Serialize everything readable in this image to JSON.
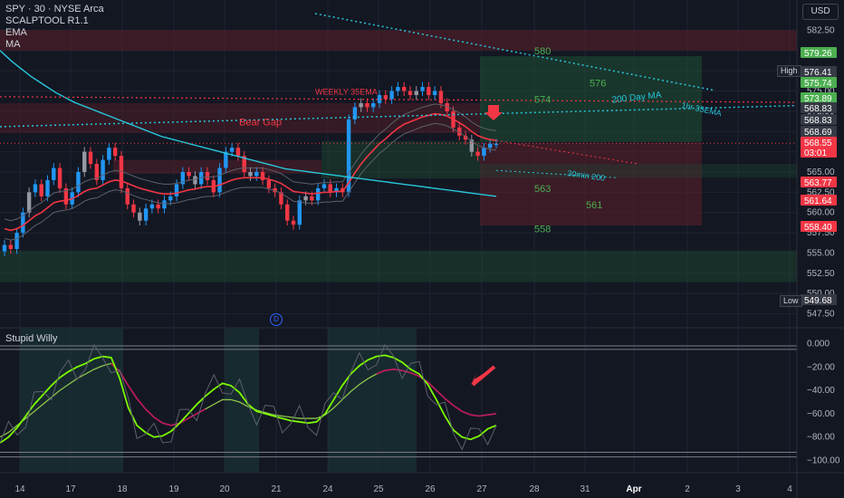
{
  "header": {
    "symbol_line": "SPY · 30 · NYSE Arca",
    "indicators": [
      "SCALPTOOL R1.1",
      "EMA",
      "MA"
    ],
    "usd": "USD"
  },
  "lower_indicator_title": "Stupid Willy",
  "side_labels": {
    "high": "High",
    "low": "Low"
  },
  "d_marker": "D",
  "colors": {
    "background": "#131722",
    "up_candle": "#2196f3",
    "down_candle": "#f23645",
    "neutral_candle": "#9598a1",
    "ema": "#f23645",
    "ma": "#26c6da",
    "zone_red": "#5c1f2a",
    "zone_green": "#1e4b33",
    "label_green": "#4caf50",
    "label_red": "#f23645",
    "label_blue": "#26c6da"
  },
  "chart_data": [
    {
      "type": "candlestick",
      "title": "SPY · 30 · NYSE Arca",
      "ylabel": "USD",
      "ylim": [
        546,
        584
      ],
      "x_ticks": [
        "14",
        "17",
        "18",
        "19",
        "20",
        "21",
        "24",
        "25",
        "26",
        "27",
        "28",
        "31",
        "Apr",
        "2",
        "3",
        "4"
      ],
      "y_ticks": [
        "582.50",
        "580.00",
        "577.50",
        "575.00",
        "572.50",
        "570.00",
        "567.50",
        "565.00",
        "562.50",
        "560.00",
        "557.50",
        "555.00",
        "552.50",
        "550.00",
        "547.50"
      ],
      "price_labels": [
        {
          "value": "579.26",
          "color": "green"
        },
        {
          "value": "576.41",
          "color": "dark"
        },
        {
          "value": "575.74",
          "color": "green"
        },
        {
          "value": "573.89",
          "color": "green"
        },
        {
          "value": "568.83",
          "color": "dark"
        },
        {
          "value": "568.83",
          "color": "dark"
        },
        {
          "value": "568.69",
          "color": "dark"
        },
        {
          "value": "568.55",
          "color": "red"
        },
        {
          "value": "03:01",
          "color": "red"
        },
        {
          "value": "563.77",
          "color": "red"
        },
        {
          "value": "561.64",
          "color": "red"
        },
        {
          "value": "558.40",
          "color": "red"
        },
        {
          "value": "549.68",
          "color": "dark"
        }
      ],
      "level_labels": [
        {
          "text": "580",
          "price": 580.0,
          "color": "green"
        },
        {
          "text": "576",
          "price": 576.0,
          "color": "green"
        },
        {
          "text": "574",
          "price": 574.0,
          "color": "green"
        },
        {
          "text": "563",
          "price": 563.0,
          "color": "green"
        },
        {
          "text": "561",
          "price": 561.0,
          "color": "green"
        },
        {
          "text": "558",
          "price": 558.0,
          "color": "green"
        }
      ],
      "annotations": [
        "WEEKLY 35EMA",
        "Bear Gap",
        "200 Day MA",
        "1hr 35EMA",
        "30min 200"
      ],
      "series": [
        {
          "name": "Close",
          "values": [
            556.0,
            555.5,
            557.5,
            560.0,
            562.5,
            563.5,
            562.0,
            564.0,
            565.5,
            563.0,
            561.0,
            562.5,
            565.0,
            567.5,
            566.0,
            564.0,
            566.5,
            568.0,
            567.0,
            563.0,
            561.0,
            560.0,
            559.0,
            560.5,
            561.0,
            560.5,
            561.5,
            562.0,
            563.5,
            565.0,
            564.5,
            563.5,
            565.0,
            564.0,
            562.5,
            565.5,
            567.5,
            568.0,
            567.0,
            565.0,
            564.5,
            565.0,
            564.0,
            563.0,
            562.5,
            561.0,
            559.0,
            558.5,
            561.5,
            562.0,
            561.5,
            563.0,
            563.5,
            562.5,
            563.0,
            562.5,
            571.5,
            573.0,
            573.5,
            573.0,
            573.5,
            574.5,
            574.0,
            575.0,
            575.5,
            575.0,
            574.5,
            575.0,
            575.5,
            574.5,
            575.0,
            573.5,
            572.5,
            570.5,
            569.5,
            569.0,
            567.5,
            567.0,
            568.0,
            568.5,
            568.5
          ]
        },
        {
          "name": "EMA",
          "values": [
            558.0,
            557.8,
            558.0,
            558.4,
            559.0,
            559.6,
            560.0,
            560.6,
            561.2,
            561.4,
            561.5,
            561.7,
            562.1,
            562.6,
            562.9,
            563.0,
            563.4,
            563.8,
            564.0,
            563.9,
            563.6,
            563.3,
            563.0,
            562.8,
            562.6,
            562.4,
            562.3,
            562.3,
            562.4,
            562.6,
            562.8,
            562.9,
            563.1,
            563.2,
            563.2,
            563.4,
            563.7,
            564.0,
            564.2,
            564.3,
            564.3,
            564.3,
            564.3,
            564.1,
            563.9,
            563.6,
            563.1,
            562.6,
            562.5,
            562.4,
            562.3,
            562.4,
            562.5,
            562.5,
            562.6,
            562.6,
            563.7,
            564.9,
            566.0,
            566.9,
            567.7,
            568.5,
            569.1,
            569.8,
            570.4,
            570.9,
            571.2,
            571.5,
            571.8,
            572.0,
            572.2,
            572.1,
            571.9,
            571.5,
            571.1,
            570.6,
            570.0,
            569.5,
            569.2,
            569.0,
            568.9
          ]
        },
        {
          "name": "MA",
          "values": [
            580.0,
            579.3,
            578.6,
            578.0,
            577.4,
            576.8,
            576.3,
            575.8,
            575.3,
            574.8,
            574.4,
            574.0,
            573.6,
            573.3,
            573.0,
            572.7,
            572.4,
            572.1,
            571.8,
            571.5,
            571.2,
            570.9,
            570.6,
            570.3,
            570.0,
            569.7,
            569.4,
            569.2,
            569.0,
            568.8,
            568.6,
            568.4,
            568.2,
            568.0,
            567.8,
            567.6,
            567.4,
            567.2,
            567.0,
            566.8,
            566.6,
            566.4,
            566.2,
            566.0,
            565.8,
            565.6,
            565.4,
            565.3,
            565.2,
            565.1,
            565.0,
            564.9,
            564.8,
            564.7,
            564.6,
            564.5,
            564.4,
            564.3,
            564.2,
            564.1,
            564.0,
            563.9,
            563.8,
            563.7,
            563.6,
            563.5,
            563.4,
            563.3,
            563.2,
            563.1,
            563.0,
            562.9,
            562.8,
            562.7,
            562.6,
            562.5,
            562.4,
            562.3,
            562.2,
            562.1,
            562.0
          ]
        }
      ]
    },
    {
      "type": "line",
      "title": "Stupid Willy",
      "ylim": [
        -105,
        5
      ],
      "y_ticks": [
        "0.000",
        "−20.00",
        "−40.00",
        "−60.00",
        "−80.00",
        "−100.00"
      ],
      "series": [
        {
          "name": "Fast",
          "values": [
            -85,
            -80,
            -72,
            -62,
            -52,
            -44,
            -36,
            -29,
            -24,
            -20,
            -17,
            -13,
            -11,
            -12,
            -30,
            -55,
            -70,
            -76,
            -80,
            -79,
            -75,
            -68,
            -60,
            -52,
            -45,
            -39,
            -34,
            -36,
            -42,
            -52,
            -58,
            -60,
            -62,
            -64,
            -66,
            -67,
            -68,
            -67,
            -60,
            -48,
            -36,
            -26,
            -19,
            -14,
            -11,
            -10,
            -12,
            -16,
            -22,
            -26,
            -35,
            -48,
            -62,
            -74,
            -80,
            -82,
            -79,
            -73,
            -70
          ]
        },
        {
          "name": "Slow",
          "values": [
            -80,
            -76,
            -70,
            -64,
            -58,
            -52,
            -46,
            -40,
            -35,
            -30,
            -26,
            -22,
            -19,
            -17,
            -24,
            -36,
            -47,
            -56,
            -63,
            -68,
            -70,
            -68,
            -64,
            -60,
            -56,
            -52,
            -48,
            -48,
            -50,
            -54,
            -57,
            -59,
            -61,
            -62,
            -63,
            -64,
            -64,
            -64,
            -61,
            -55,
            -48,
            -41,
            -35,
            -30,
            -26,
            -23,
            -22,
            -23,
            -25,
            -28,
            -33,
            -40,
            -47,
            -53,
            -58,
            -61,
            -62,
            -61,
            -60
          ]
        }
      ]
    }
  ]
}
